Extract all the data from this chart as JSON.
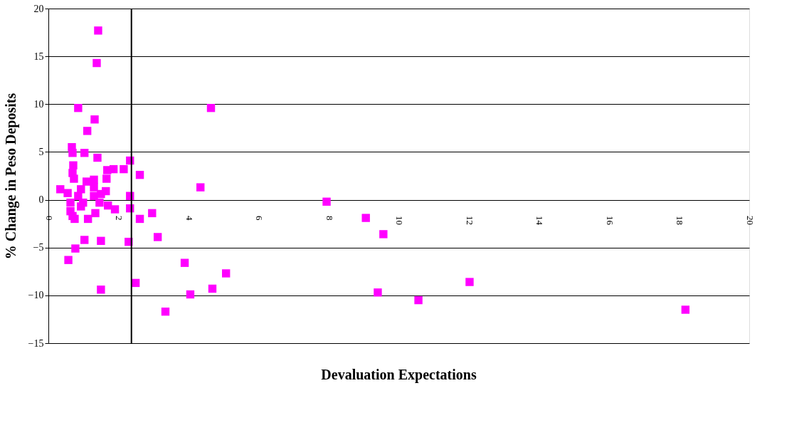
{
  "chart_data": {
    "type": "scatter",
    "xlabel": "Devaluation Expectations",
    "ylabel": "% Change in Peso Deposits",
    "marker": "square",
    "grid": "y",
    "xlim": [
      0,
      20
    ],
    "xticks": [
      0,
      2,
      4,
      6,
      8,
      10,
      12,
      14,
      16,
      18,
      20
    ],
    "ylim": [
      -15,
      20
    ],
    "yticks": [
      -15,
      -10,
      -5,
      0,
      5,
      10,
      15,
      20
    ],
    "ref_lines": [
      {
        "axis": "x",
        "value": 2.37,
        "color": "#000000"
      }
    ],
    "series": [
      {
        "color": "#ff00ff",
        "x": [
          1.42,
          1.38,
          0.85,
          1.32,
          1.11,
          0.67,
          0.69,
          1.03,
          1.4,
          0.71,
          2.33,
          2.61,
          1.86,
          1.68,
          2.15,
          0.69,
          0.73,
          1.3,
          1.09,
          1.66,
          0.34,
          0.55,
          0.93,
          1.3,
          1.5,
          1.64,
          2.33,
          4.34,
          1.3,
          0.85,
          0.63,
          0.99,
          1.46,
          1.7,
          1.9,
          2.33,
          0.93,
          0.63,
          0.69,
          0.75,
          1.34,
          1.13,
          2.96,
          2.61,
          1.03,
          1.5,
          2.29,
          3.12,
          0.77,
          0.57,
          1.5,
          2.49,
          3.89,
          4.05,
          3.34,
          4.68,
          5.07,
          4.64,
          7.94,
          9.06,
          9.56,
          9.4,
          10.56,
          12.02,
          18.18
        ],
        "values": [
          17.7,
          14.3,
          9.6,
          8.4,
          7.2,
          5.5,
          4.9,
          4.9,
          4.4,
          3.6,
          4.1,
          2.6,
          3.2,
          3.1,
          3.2,
          2.8,
          2.2,
          2.1,
          1.9,
          2.2,
          1.1,
          0.7,
          1.1,
          1.3,
          0.6,
          0.9,
          0.4,
          1.3,
          0.4,
          0.4,
          -0.3,
          -0.3,
          -0.3,
          -0.6,
          -1.0,
          -0.9,
          -0.7,
          -1.2,
          -1.7,
          -2.0,
          -1.4,
          -2.0,
          -1.4,
          -2.0,
          -4.2,
          -4.3,
          -4.4,
          -3.9,
          -5.1,
          -6.3,
          -9.4,
          -8.7,
          -6.6,
          -9.9,
          -11.7,
          -9.3,
          -7.7,
          9.6,
          -0.2,
          -1.9,
          -3.6,
          -9.7,
          -10.5,
          -8.6,
          -11.5
        ]
      }
    ]
  }
}
